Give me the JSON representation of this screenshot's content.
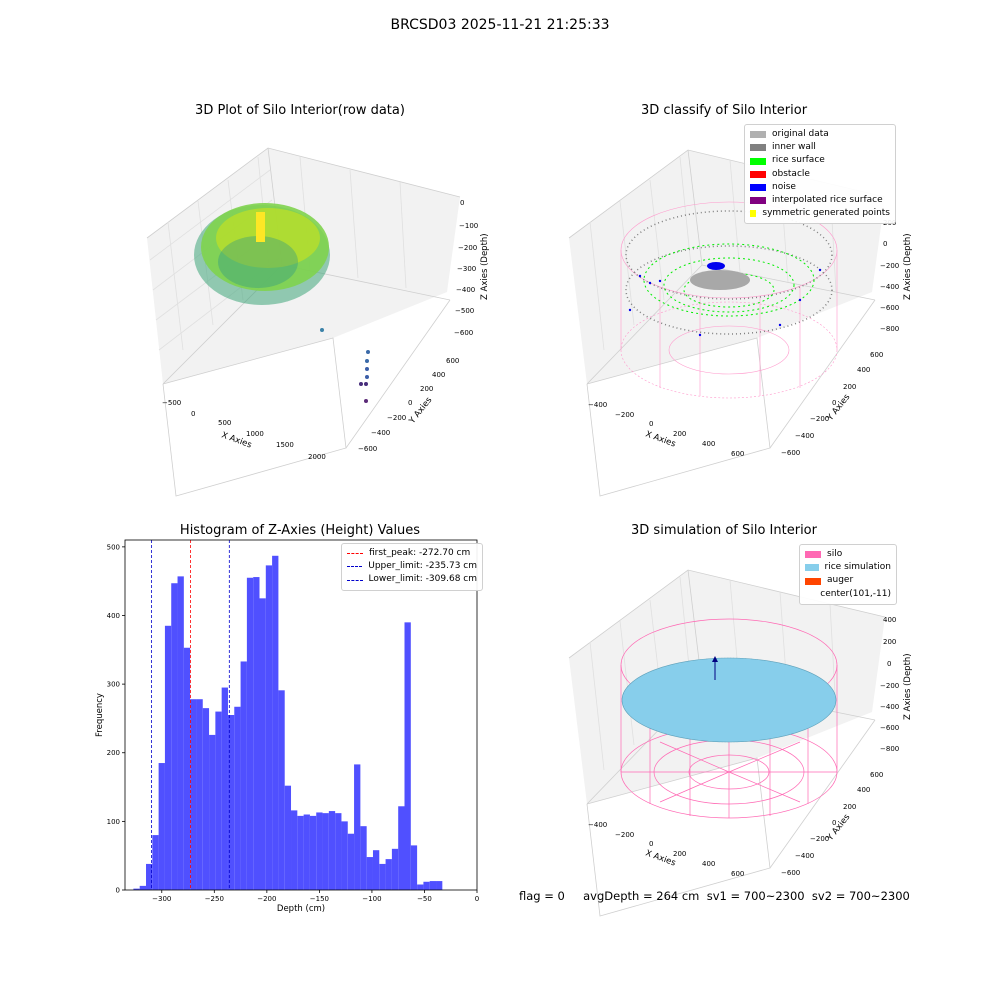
{
  "suptitle": "BRCSD03 2025-11-21 21:25:33",
  "panels": {
    "raw": {
      "title": "3D Plot of Silo Interior(row data)",
      "xlabel": "X Axies",
      "ylabel": "Y Axies",
      "zlabel": "Z Axies (Depth)",
      "xticks": [
        "−500",
        "0",
        "500",
        "1000",
        "1500",
        "2000"
      ],
      "yticks": [
        "−600",
        "−400",
        "−200",
        "0",
        "200",
        "400",
        "600"
      ],
      "zticks": [
        "0",
        "−100",
        "−200",
        "−300",
        "−400",
        "−500",
        "−600"
      ]
    },
    "classify": {
      "title": "3D classify of Silo Interior",
      "xlabel": "X Axies",
      "ylabel": "Y Axies",
      "zlabel": "Z Axies (Depth)",
      "xticks": [
        "−400",
        "−200",
        "0",
        "200",
        "400",
        "600"
      ],
      "yticks": [
        "−600",
        "−400",
        "−200",
        "0",
        "200",
        "400",
        "600"
      ],
      "zticks": [
        "200",
        "0",
        "−200",
        "−400",
        "−600",
        "−800"
      ],
      "legend": [
        {
          "label": "original data",
          "color": "#b0b0b0"
        },
        {
          "label": "inner wall",
          "color": "#808080"
        },
        {
          "label": "rice surface",
          "color": "#00ff00"
        },
        {
          "label": "obstacle",
          "color": "#ff0000"
        },
        {
          "label": "noise",
          "color": "#0000ff"
        },
        {
          "label": "interpolated rice surface",
          "color": "#800080"
        },
        {
          "label": "symmetric generated points",
          "color": "#ffff00"
        }
      ]
    },
    "simulation": {
      "title": "3D simulation of Silo Interior",
      "xlabel": "X Axies",
      "ylabel": "Y Axies",
      "zlabel": "Z Axies (Depth)",
      "xticks": [
        "−400",
        "−200",
        "0",
        "200",
        "400",
        "600"
      ],
      "yticks": [
        "−600",
        "−400",
        "−200",
        "0",
        "200",
        "400",
        "600"
      ],
      "zticks": [
        "400",
        "200",
        "0",
        "−200",
        "−400",
        "−600",
        "−800"
      ],
      "legend": [
        {
          "label": "silo",
          "color": "#ff69b4"
        },
        {
          "label": "rice simulation",
          "color": "#87ceeb"
        },
        {
          "label": "auger",
          "color": "#ff4500"
        },
        {
          "label": "center(101,-11)",
          "color": ""
        }
      ]
    }
  },
  "footer": "flag = 0     avgDepth = 264 cm  sv1 = 700~2300  sv2 = 700~2300",
  "chart_data": {
    "type": "bar",
    "title": "Histogram of Z-Axies (Height) Values",
    "xlabel": "Depth (cm)",
    "ylabel": "Frequency",
    "xlim": [
      -335,
      0
    ],
    "ylim": [
      0,
      510
    ],
    "xticks": [
      -300,
      -250,
      -200,
      -150,
      -100,
      -50,
      0
    ],
    "yticks": [
      0,
      100,
      200,
      300,
      400,
      500
    ],
    "bin_start": -327,
    "bin_width": 6,
    "values": [
      2,
      6,
      38,
      80,
      185,
      385,
      447,
      457,
      353,
      278,
      278,
      265,
      226,
      260,
      295,
      255,
      267,
      333,
      455,
      456,
      425,
      473,
      487,
      291,
      152,
      116,
      108,
      110,
      108,
      113,
      112,
      115,
      112,
      100,
      82,
      183,
      93,
      48,
      58,
      38,
      45,
      60,
      122,
      390,
      65,
      8,
      12,
      13,
      13
    ],
    "bar_color": "#5050ff",
    "vlines": [
      {
        "label": "first_peak: -272.70 cm",
        "x": -272.7,
        "color": "#ff0000"
      },
      {
        "label": "Upper_limit: -235.73 cm",
        "x": -235.73,
        "color": "#0000cc"
      },
      {
        "label": "Lower_limit: -309.68 cm",
        "x": -309.68,
        "color": "#0000cc"
      }
    ],
    "legend_position": "top-right",
    "grid": false
  }
}
